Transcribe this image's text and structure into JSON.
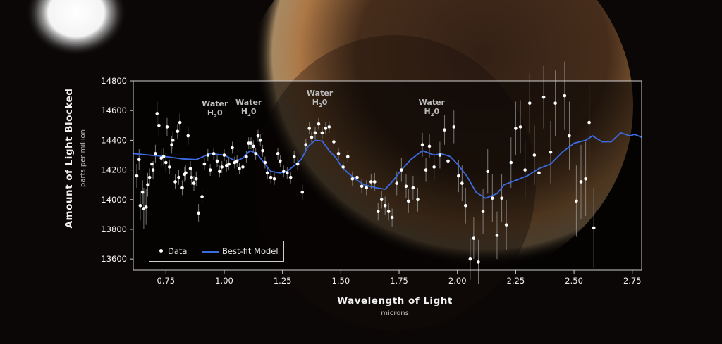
{
  "colors": {
    "model_line": "#3a6be0",
    "data_points": "#ffffff",
    "error_bars": "#9a9a9a",
    "frame": "#cfcfcf",
    "text": "#f2f2f2"
  },
  "chart_data": {
    "type": "scatter",
    "ylabel": "Amount of Light Blocked",
    "ylabel_units": "parts per million",
    "xlabel": "Wavelength of Light",
    "xlabel_units": "microns",
    "xlim": [
      0.61,
      2.79
    ],
    "ylim": [
      13525,
      14800
    ],
    "x_ticks": [
      0.75,
      1.0,
      1.25,
      1.5,
      1.75,
      2.0,
      2.25,
      2.5,
      2.75
    ],
    "x_tick_labels": [
      "0.75",
      "1.00",
      "1.25",
      "1.50",
      "1.75",
      "2.00",
      "2.25",
      "2.50",
      "2.75"
    ],
    "y_ticks": [
      13600,
      13800,
      14000,
      14200,
      14400,
      14600,
      14800
    ],
    "y_tick_labels": [
      "13600",
      "13800",
      "14000",
      "14200",
      "14400",
      "14600",
      "14800"
    ],
    "legend": {
      "position": "bottom-left",
      "entries": [
        "Data",
        "Best-fit Model"
      ]
    },
    "annotations": [
      {
        "text": "Water",
        "formula": "H",
        "sub": "2",
        "tail": "0",
        "x": 0.96,
        "y": 14640
      },
      {
        "text": "Water",
        "formula": "H",
        "sub": "2",
        "tail": "0",
        "x": 1.105,
        "y": 14650
      },
      {
        "text": "Water",
        "formula": "H",
        "sub": "2",
        "tail": "0",
        "x": 1.41,
        "y": 14710
      },
      {
        "text": "Water",
        "formula": "H",
        "sub": "2",
        "tail": "0",
        "x": 1.89,
        "y": 14650
      }
    ],
    "series": [
      {
        "name": "Data",
        "kind": "points",
        "points": [
          [
            0.625,
            14160,
            80
          ],
          [
            0.635,
            14270,
            70
          ],
          [
            0.64,
            13960,
            100
          ],
          [
            0.65,
            14050,
            80
          ],
          [
            0.655,
            13940,
            140
          ],
          [
            0.665,
            13950,
            120
          ],
          [
            0.672,
            14100,
            80
          ],
          [
            0.68,
            14150,
            60
          ],
          [
            0.69,
            14240,
            60
          ],
          [
            0.695,
            14200,
            60
          ],
          [
            0.705,
            14310,
            60
          ],
          [
            0.712,
            14580,
            80
          ],
          [
            0.72,
            14500,
            70
          ],
          [
            0.73,
            14280,
            60
          ],
          [
            0.74,
            14290,
            60
          ],
          [
            0.75,
            14250,
            60
          ],
          [
            0.755,
            14490,
            60
          ],
          [
            0.765,
            14220,
            50
          ],
          [
            0.775,
            14370,
            60
          ],
          [
            0.78,
            14400,
            60
          ],
          [
            0.79,
            14120,
            50
          ],
          [
            0.8,
            14460,
            50
          ],
          [
            0.805,
            14150,
            50
          ],
          [
            0.81,
            14520,
            60
          ],
          [
            0.82,
            14080,
            50
          ],
          [
            0.83,
            14170,
            50
          ],
          [
            0.835,
            14180,
            50
          ],
          [
            0.845,
            14430,
            60
          ],
          [
            0.855,
            14210,
            50
          ],
          [
            0.86,
            14150,
            50
          ],
          [
            0.87,
            14110,
            50
          ],
          [
            0.88,
            14140,
            50
          ],
          [
            0.89,
            13910,
            60
          ],
          [
            0.905,
            14020,
            50
          ],
          [
            0.915,
            14240,
            40
          ],
          [
            0.93,
            14300,
            40
          ],
          [
            0.94,
            14200,
            40
          ],
          [
            0.955,
            14310,
            40
          ],
          [
            0.97,
            14260,
            40
          ],
          [
            0.98,
            14190,
            40
          ],
          [
            0.99,
            14220,
            40
          ],
          [
            1.0,
            14300,
            40
          ],
          [
            1.01,
            14230,
            40
          ],
          [
            1.02,
            14240,
            40
          ],
          [
            1.035,
            14350,
            40
          ],
          [
            1.045,
            14250,
            40
          ],
          [
            1.055,
            14260,
            40
          ],
          [
            1.065,
            14210,
            40
          ],
          [
            1.08,
            14220,
            40
          ],
          [
            1.095,
            14290,
            40
          ],
          [
            1.105,
            14380,
            40
          ],
          [
            1.115,
            14380,
            40
          ],
          [
            1.125,
            14360,
            40
          ],
          [
            1.135,
            14310,
            40
          ],
          [
            1.145,
            14430,
            40
          ],
          [
            1.155,
            14400,
            40
          ],
          [
            1.165,
            14330,
            40
          ],
          [
            1.175,
            14250,
            40
          ],
          [
            1.185,
            14180,
            40
          ],
          [
            1.2,
            14150,
            40
          ],
          [
            1.215,
            14140,
            40
          ],
          [
            1.23,
            14310,
            40
          ],
          [
            1.24,
            14260,
            40
          ],
          [
            1.255,
            14190,
            40
          ],
          [
            1.27,
            14180,
            40
          ],
          [
            1.285,
            14150,
            40
          ],
          [
            1.3,
            14290,
            40
          ],
          [
            1.315,
            14240,
            40
          ],
          [
            1.335,
            14050,
            50
          ],
          [
            1.35,
            14370,
            40
          ],
          [
            1.365,
            14480,
            40
          ],
          [
            1.375,
            14420,
            40
          ],
          [
            1.39,
            14450,
            40
          ],
          [
            1.405,
            14510,
            40
          ],
          [
            1.42,
            14450,
            40
          ],
          [
            1.435,
            14480,
            40
          ],
          [
            1.45,
            14490,
            40
          ],
          [
            1.47,
            14390,
            40
          ],
          [
            1.49,
            14310,
            40
          ],
          [
            1.51,
            14220,
            40
          ],
          [
            1.53,
            14290,
            40
          ],
          [
            1.55,
            14140,
            50
          ],
          [
            1.57,
            14150,
            50
          ],
          [
            1.59,
            14090,
            50
          ],
          [
            1.61,
            14080,
            50
          ],
          [
            1.63,
            14120,
            50
          ],
          [
            1.645,
            14120,
            60
          ],
          [
            1.66,
            13920,
            60
          ],
          [
            1.675,
            14000,
            60
          ],
          [
            1.69,
            13960,
            60
          ],
          [
            1.705,
            13920,
            60
          ],
          [
            1.72,
            13880,
            60
          ],
          [
            1.74,
            14110,
            80
          ],
          [
            1.76,
            14200,
            80
          ],
          [
            1.78,
            14090,
            80
          ],
          [
            1.79,
            13990,
            80
          ],
          [
            1.81,
            14080,
            80
          ],
          [
            1.83,
            14000,
            80
          ],
          [
            1.85,
            14370,
            80
          ],
          [
            1.865,
            14200,
            80
          ],
          [
            1.88,
            14360,
            80
          ],
          [
            1.9,
            14220,
            90
          ],
          [
            1.925,
            14300,
            90
          ],
          [
            1.945,
            14470,
            100
          ],
          [
            1.96,
            14260,
            100
          ],
          [
            1.985,
            14490,
            110
          ],
          [
            2.005,
            14160,
            110
          ],
          [
            2.02,
            14110,
            120
          ],
          [
            2.035,
            13960,
            120
          ],
          [
            2.055,
            13600,
            140
          ],
          [
            2.07,
            13740,
            140
          ],
          [
            2.09,
            13580,
            150
          ],
          [
            2.11,
            13920,
            150
          ],
          [
            2.13,
            14190,
            150
          ],
          [
            2.15,
            14010,
            160
          ],
          [
            2.17,
            13760,
            160
          ],
          [
            2.19,
            14010,
            160
          ],
          [
            2.21,
            13830,
            170
          ],
          [
            2.23,
            14250,
            170
          ],
          [
            2.25,
            14480,
            180
          ],
          [
            2.27,
            14490,
            180
          ],
          [
            2.29,
            14200,
            190
          ],
          [
            2.31,
            14650,
            200
          ],
          [
            2.33,
            14300,
            200
          ],
          [
            2.35,
            14180,
            200
          ],
          [
            2.37,
            14690,
            210
          ],
          [
            2.4,
            14320,
            210
          ],
          [
            2.42,
            14650,
            220
          ],
          [
            2.46,
            14700,
            230
          ],
          [
            2.48,
            14430,
            230
          ],
          [
            2.51,
            13990,
            240
          ],
          [
            2.53,
            14120,
            250
          ],
          [
            2.55,
            14140,
            250
          ],
          [
            2.565,
            14520,
            260
          ],
          [
            2.585,
            13810,
            270
          ]
        ]
      },
      {
        "name": "Best-fit Model",
        "kind": "line",
        "points": [
          [
            0.61,
            14310
          ],
          [
            0.68,
            14300
          ],
          [
            0.75,
            14290
          ],
          [
            0.82,
            14275
          ],
          [
            0.88,
            14270
          ],
          [
            0.94,
            14310
          ],
          [
            1.0,
            14300
          ],
          [
            1.05,
            14260
          ],
          [
            1.08,
            14280
          ],
          [
            1.11,
            14330
          ],
          [
            1.14,
            14310
          ],
          [
            1.17,
            14250
          ],
          [
            1.2,
            14190
          ],
          [
            1.24,
            14180
          ],
          [
            1.27,
            14190
          ],
          [
            1.3,
            14230
          ],
          [
            1.33,
            14270
          ],
          [
            1.36,
            14360
          ],
          [
            1.39,
            14400
          ],
          [
            1.42,
            14395
          ],
          [
            1.45,
            14330
          ],
          [
            1.48,
            14280
          ],
          [
            1.5,
            14230
          ],
          [
            1.53,
            14180
          ],
          [
            1.57,
            14130
          ],
          [
            1.6,
            14100
          ],
          [
            1.65,
            14080
          ],
          [
            1.69,
            14070
          ],
          [
            1.72,
            14120
          ],
          [
            1.76,
            14200
          ],
          [
            1.8,
            14270
          ],
          [
            1.85,
            14330
          ],
          [
            1.9,
            14300
          ],
          [
            1.93,
            14310
          ],
          [
            1.97,
            14290
          ],
          [
            2.0,
            14240
          ],
          [
            2.04,
            14160
          ],
          [
            2.08,
            14050
          ],
          [
            2.12,
            14010
          ],
          [
            2.17,
            14040
          ],
          [
            2.2,
            14100
          ],
          [
            2.25,
            14130
          ],
          [
            2.3,
            14160
          ],
          [
            2.35,
            14210
          ],
          [
            2.4,
            14240
          ],
          [
            2.45,
            14320
          ],
          [
            2.5,
            14380
          ],
          [
            2.55,
            14400
          ],
          [
            2.58,
            14430
          ],
          [
            2.62,
            14390
          ],
          [
            2.66,
            14390
          ],
          [
            2.7,
            14450
          ],
          [
            2.74,
            14430
          ],
          [
            2.76,
            14440
          ],
          [
            2.79,
            14420
          ]
        ]
      }
    ]
  },
  "labels": {
    "ylabel": "Amount of Light Blocked",
    "ylabel_units": "parts per million",
    "xlabel": "Wavelength of Light",
    "xlabel_units": "microns",
    "legend_data": "Data",
    "legend_model": "Best-fit Model"
  }
}
